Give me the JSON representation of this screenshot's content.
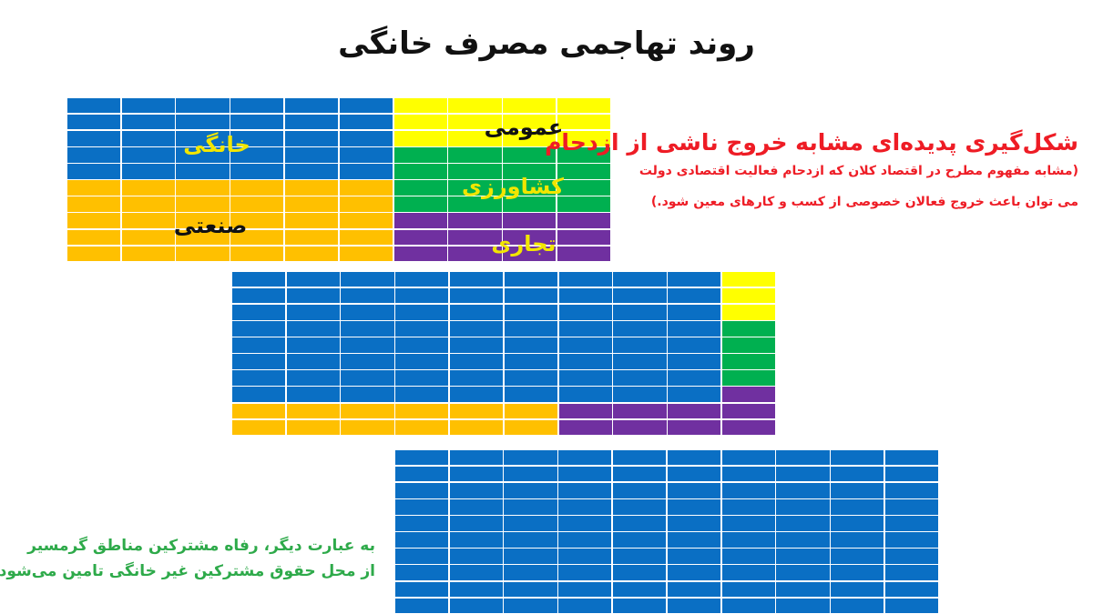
{
  "title": "روند تهاجمی مصرف خانگی",
  "colors": {
    "blue": "#0a6fc4",
    "yellow": "#ffff00",
    "green": "#00b050",
    "purple": "#7030a0",
    "orange": "#ffc000",
    "red": "#ee1c25",
    "text_green": "#2eaa4a"
  },
  "grid1": {
    "labels": {
      "domestic": "خانگی",
      "public": "عمومی",
      "agriculture": "کشاورزی",
      "industrial": "صنعتی",
      "commercial": "تجاری"
    },
    "label_colors": {
      "domestic": "#f2e600",
      "public": "#111111",
      "agriculture": "#f2e600",
      "industrial": "#111111",
      "commercial": "#f2e600"
    },
    "rows": [
      "BBBBBBYYYY",
      "BBBBBBYYYY",
      "BBBBBBYYYY",
      "BBBBBBGGGG",
      "BBBBBBGGGG",
      "OOOOOOGGGG",
      "OOOOOOGGGG",
      "OOOOOOPPPP",
      "OOOOOOPPPP",
      "OOOOOOPPPP"
    ]
  },
  "grid2": {
    "rows": [
      "BBBBBBBBBY",
      "BBBBBBBBBY",
      "BBBBBBBBBY",
      "BBBBBBBBBG",
      "BBBBBBBBBG",
      "BBBBBBBBBG",
      "BBBBBBBBBG",
      "BBBBBBBBBP",
      "OOOOOOPPPP",
      "OOOOOOPPPP"
    ]
  },
  "grid3": {
    "rows": [
      "BBBBBBBBBB",
      "BBBBBBBBBB",
      "BBBBBBBBBB",
      "BBBBBBBBBB",
      "BBBBBBBBBB",
      "BBBBBBBBBB",
      "BBBBBBBBBB",
      "BBBBBBBBBB",
      "BBBBBBBBBB",
      "BBBBBBBBBB"
    ]
  },
  "notes": {
    "heading": "شکل‌گیری پدیده‌ای مشابه خروج ناشی از ازدحام",
    "line1": "(مشابه مفهوم مطرح در اقتصاد کلان که ازدحام فعالیت اقتصادی دولت",
    "line2": "می توان باعث خروج فعالان خصوصی از کسب و کارهای معین شود.)",
    "green_line1": "به عبارت دیگر، رفاه مشترکین مناطق گرمسیر",
    "green_line2": "از محل حقوق مشترکین غیر خانگی تامین می‌شود"
  }
}
